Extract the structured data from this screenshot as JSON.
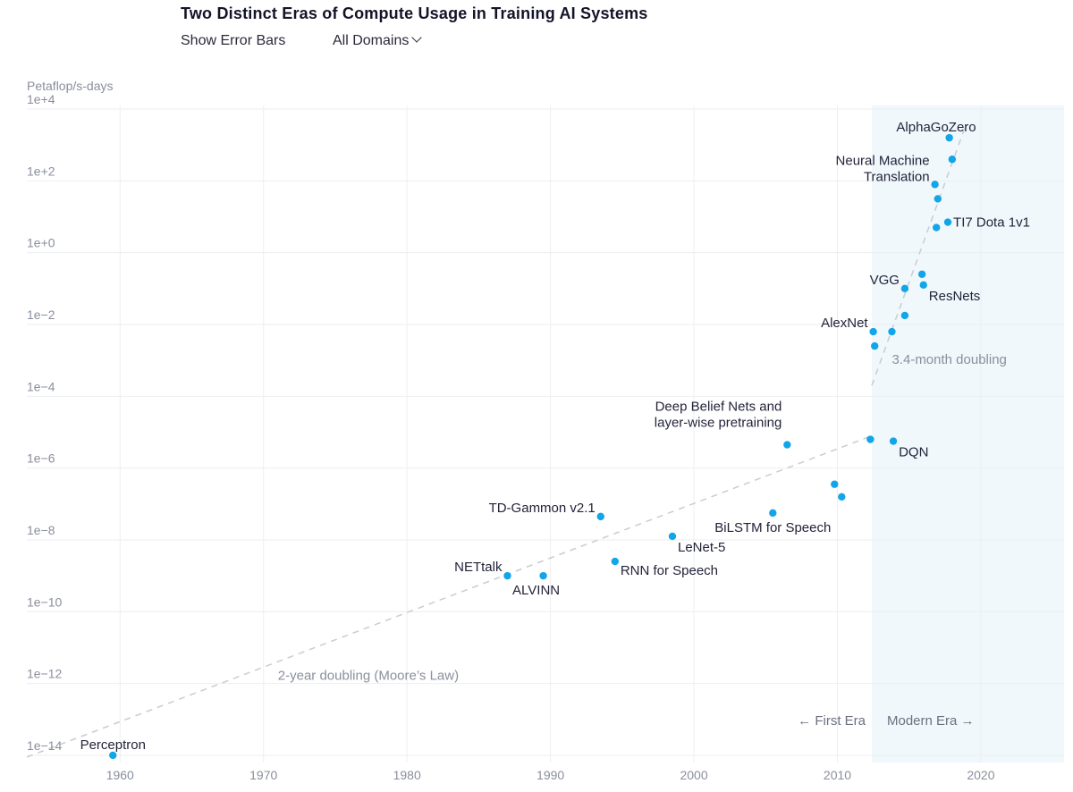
{
  "header": {
    "title": "Two Distinct Eras of Compute Usage in Training AI Systems",
    "error_bars_label": "Show Error Bars",
    "domain_label": "All Domains"
  },
  "colors": {
    "point": "#12a5e8",
    "modern_era_bg": "#f0f8fc",
    "trend": "#c9ccd1",
    "grid": "#eceef1"
  },
  "chart_data": {
    "type": "scatter",
    "title": "Two Distinct Eras of Compute Usage in Training AI Systems",
    "ylabel": "Petaflop/s-days",
    "yscale": "log",
    "xlim": [
      1953.5,
      2025.8
    ],
    "ylim_exp": [
      -14.2,
      4.1
    ],
    "xticks": [
      "1960",
      "1970",
      "1980",
      "1990",
      "2000",
      "2010",
      "2020"
    ],
    "yticks": [
      {
        "exp": 4,
        "label": "1e+4"
      },
      {
        "exp": 2,
        "label": "1e+2"
      },
      {
        "exp": 0,
        "label": "1e+0"
      },
      {
        "exp": -2,
        "label": "1e−2"
      },
      {
        "exp": -4,
        "label": "1e−4"
      },
      {
        "exp": -6,
        "label": "1e−6"
      },
      {
        "exp": -8,
        "label": "1e−8"
      },
      {
        "exp": -10,
        "label": "1e−10"
      },
      {
        "exp": -12,
        "label": "1e−12"
      },
      {
        "exp": -14,
        "label": "1e−14"
      }
    ],
    "grid": true,
    "modern_era_start": 2012.4,
    "points": [
      {
        "x": 1959.5,
        "y_exp": -14.0,
        "label": "Perceptron",
        "anchor": "middle",
        "dx": 0,
        "dy": -12
      },
      {
        "x": 1987.0,
        "y_exp": -9.0,
        "label": "NETtalk",
        "anchor": "end",
        "dx": -6,
        "dy": -10
      },
      {
        "x": 1989.5,
        "y_exp": -9.0,
        "label": "ALVINN",
        "anchor": "middle",
        "dx": -8,
        "dy": 16
      },
      {
        "x": 1993.5,
        "y_exp": -7.35,
        "label": "TD-Gammon v2.1",
        "anchor": "end",
        "dx": -6,
        "dy": -10
      },
      {
        "x": 1994.5,
        "y_exp": -8.6,
        "label": "RNN for Speech",
        "anchor": "start",
        "dx": 6,
        "dy": 10
      },
      {
        "x": 1998.5,
        "y_exp": -7.9,
        "label": "LeNet-5",
        "anchor": "start",
        "dx": 6,
        "dy": 12
      },
      {
        "x": 2005.5,
        "y_exp": -7.25,
        "label": "BiLSTM for Speech",
        "anchor": "middle",
        "dx": 0,
        "dy": 16
      },
      {
        "x": 2006.5,
        "y_exp": -5.35,
        "label": "Deep Belief Nets and",
        "label2": "layer-wise pretraining",
        "anchor": "end",
        "dx": -6,
        "dy": -26
      },
      {
        "x": 2009.8,
        "y_exp": -6.45,
        "label": "",
        "anchor": "start",
        "dx": 0,
        "dy": 0
      },
      {
        "x": 2010.3,
        "y_exp": -6.8,
        "label": "",
        "anchor": "start",
        "dx": 0,
        "dy": 0
      },
      {
        "x": 2012.3,
        "y_exp": -5.2,
        "label": "",
        "anchor": "start",
        "dx": 0,
        "dy": 0
      },
      {
        "x": 2013.9,
        "y_exp": -5.25,
        "label": "DQN",
        "anchor": "start",
        "dx": 6,
        "dy": 12
      },
      {
        "x": 2012.5,
        "y_exp": -2.2,
        "label": "AlexNet",
        "anchor": "end",
        "dx": -6,
        "dy": -10
      },
      {
        "x": 2012.6,
        "y_exp": -2.6,
        "label": "",
        "anchor": "start",
        "dx": 0,
        "dy": 0
      },
      {
        "x": 2013.8,
        "y_exp": -2.2,
        "label": "",
        "anchor": "start",
        "dx": 0,
        "dy": 0
      },
      {
        "x": 2014.7,
        "y_exp": -1.75,
        "label": "",
        "anchor": "start",
        "dx": 0,
        "dy": 0
      },
      {
        "x": 2014.7,
        "y_exp": -1.0,
        "label": "VGG",
        "anchor": "end",
        "dx": -6,
        "dy": -10
      },
      {
        "x": 2015.9,
        "y_exp": -0.6,
        "label": "",
        "anchor": "start",
        "dx": 0,
        "dy": 0
      },
      {
        "x": 2016.0,
        "y_exp": -0.9,
        "label": "ResNets",
        "anchor": "start",
        "dx": 6,
        "dy": 12
      },
      {
        "x": 2016.9,
        "y_exp": 0.7,
        "label": "",
        "anchor": "start",
        "dx": 0,
        "dy": 0
      },
      {
        "x": 2017.7,
        "y_exp": 0.85,
        "label": "TI7 Dota 1v1",
        "anchor": "start",
        "dx": 6,
        "dy": 0
      },
      {
        "x": 2017.0,
        "y_exp": 1.5,
        "label": "",
        "anchor": "start",
        "dx": 0,
        "dy": 0
      },
      {
        "x": 2016.8,
        "y_exp": 1.9,
        "label": "Neural Machine",
        "label2": "Translation",
        "anchor": "end",
        "dx": -6,
        "dy": -10
      },
      {
        "x": 2018.0,
        "y_exp": 2.6,
        "label": "",
        "anchor": "start",
        "dx": 0,
        "dy": 0
      },
      {
        "x": 2017.8,
        "y_exp": 3.2,
        "label": "AlphaGoZero",
        "anchor": "end",
        "dx": 30,
        "dy": -12
      }
    ],
    "trends": [
      {
        "label": "2-year doubling (Moore’s Law)",
        "x0": 1953.5,
        "y0_exp": -14.05,
        "x1": 2012.4,
        "y1_exp": -5.1,
        "label_x": 1971.0,
        "label_y_exp": -11.9
      },
      {
        "label": "3.4-month doubling",
        "x0": 2012.4,
        "y0_exp": -3.7,
        "x1": 2018.9,
        "y1_exp": 3.5,
        "label_x": 2013.8,
        "label_y_exp": -3.1
      }
    ],
    "era_labels": {
      "first": "First Era",
      "modern": "Modern Era"
    }
  }
}
